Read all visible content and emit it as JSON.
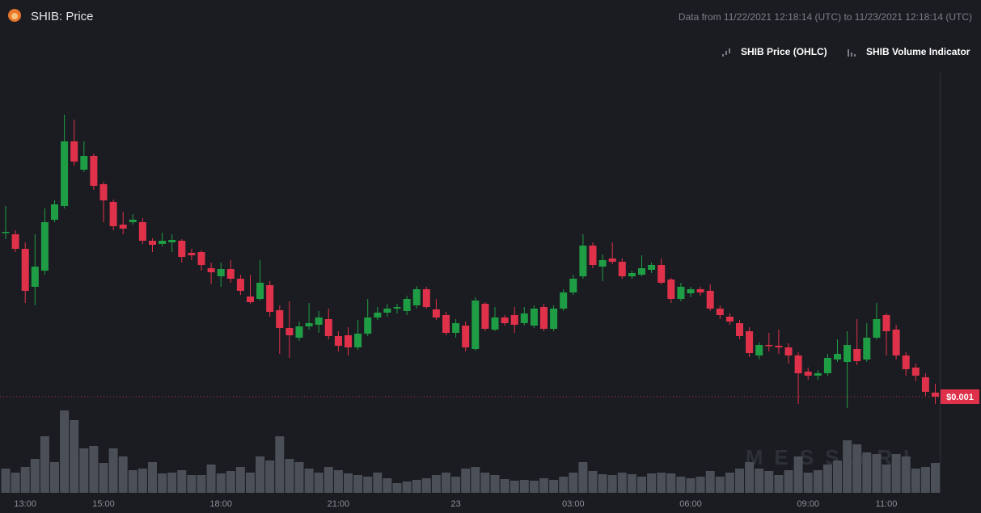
{
  "chart_data": {
    "type": "candlestick",
    "title": "SHIB: Price",
    "subtitle": "Data from 11/22/2021 12:18:14 (UTC) to 11/23/2021 12:18:14 (UTC)",
    "watermark": "MESSARI",
    "categories": [
      null,
      null,
      "13:00",
      null,
      null,
      null,
      null,
      null,
      null,
      null,
      "15:00",
      null,
      null,
      null,
      null,
      null,
      null,
      null,
      null,
      null,
      null,
      null,
      "18:00",
      null,
      null,
      null,
      null,
      null,
      null,
      null,
      null,
      null,
      null,
      null,
      "21:00",
      null,
      null,
      null,
      null,
      null,
      null,
      null,
      null,
      null,
      null,
      null,
      "23",
      null,
      null,
      null,
      null,
      null,
      null,
      null,
      null,
      null,
      null,
      null,
      "03:00",
      null,
      null,
      null,
      null,
      null,
      null,
      null,
      null,
      null,
      null,
      null,
      "06:00",
      null,
      null,
      null,
      null,
      null,
      null,
      null,
      null,
      null,
      null,
      null,
      "09:00",
      null,
      null,
      null,
      null,
      null,
      null,
      null,
      "11:00",
      null,
      null,
      null,
      null,
      null
    ],
    "ylim": [
      0.000981,
      0.001401
    ],
    "y2lim": [
      0,
      120
    ],
    "series": [
      {
        "name": "SHIB Price (OHLC)",
        "up_color": "#1f9d45",
        "down_color": "#e0314b",
        "last_value_label": "$0.001",
        "open": [
          0.001203,
          0.001201,
          0.001183,
          0.001136,
          0.001156,
          0.001219,
          0.001236,
          0.001316,
          0.001281,
          0.001298,
          0.001263,
          0.001241,
          0.001213,
          0.001216,
          0.001216,
          0.001193,
          0.001189,
          0.001191,
          0.001193,
          0.001178,
          0.001179,
          0.001159,
          0.001149,
          0.001158,
          0.001146,
          0.001124,
          0.001121,
          0.001138,
          0.001107,
          0.001085,
          0.001073,
          0.001087,
          0.001089,
          0.001096,
          0.001075,
          0.001076,
          0.001061,
          0.001078,
          0.001098,
          0.001104,
          0.001109,
          0.001106,
          0.001113,
          0.001133,
          0.001108,
          0.001101,
          0.001079,
          0.001088,
          0.001059,
          0.001115,
          0.001083,
          0.001098,
          0.001101,
          0.001091,
          0.001088,
          0.001111,
          0.001084,
          0.001109,
          0.001129,
          0.001149,
          0.001187,
          0.001161,
          0.001171,
          0.001167,
          0.001149,
          0.001151,
          0.001157,
          0.001163,
          0.001145,
          0.001121,
          0.001128,
          0.001133,
          0.001131,
          0.001109,
          0.001099,
          0.001091,
          0.001081,
          0.001051,
          0.001064,
          0.001063,
          0.001061,
          0.001051,
          0.001031,
          0.001026,
          0.001029,
          0.001046,
          0.001043,
          0.001059,
          0.001046,
          0.001073,
          0.001101,
          0.001083,
          0.001051,
          0.001036,
          0.001024,
          0.001005
        ],
        "high": [
          0.001236,
          0.001206,
          0.001191,
          0.001201,
          0.001233,
          0.001243,
          0.001349,
          0.001343,
          0.001316,
          0.001301,
          0.001266,
          0.001244,
          0.001229,
          0.001226,
          0.001221,
          0.001196,
          0.001203,
          0.001201,
          0.001195,
          0.001183,
          0.001181,
          0.001166,
          0.001166,
          0.001169,
          0.001151,
          0.001151,
          0.001169,
          0.001143,
          0.001113,
          0.001118,
          0.001093,
          0.001116,
          0.001106,
          0.001109,
          0.001081,
          0.001086,
          0.001095,
          0.001121,
          0.001111,
          0.001115,
          0.001115,
          0.001125,
          0.001137,
          0.001136,
          0.001121,
          0.001105,
          0.001096,
          0.001093,
          0.001123,
          0.001117,
          0.001111,
          0.001101,
          0.001111,
          0.001111,
          0.001113,
          0.001115,
          0.001113,
          0.001133,
          0.001151,
          0.001201,
          0.001191,
          0.001176,
          0.001191,
          0.001171,
          0.001156,
          0.001175,
          0.001166,
          0.001171,
          0.001147,
          0.001141,
          0.001136,
          0.001136,
          0.001139,
          0.001113,
          0.001103,
          0.001095,
          0.001086,
          0.001067,
          0.001079,
          0.001083,
          0.001066,
          0.001055,
          0.001036,
          0.001033,
          0.001053,
          0.001071,
          0.001081,
          0.001096,
          0.001091,
          0.001116,
          0.001103,
          0.001089,
          0.001055,
          0.001041,
          0.001029,
          0.001016
        ],
        "low": [
          0.001195,
          0.001179,
          0.001116,
          0.001113,
          0.001151,
          0.001216,
          0.001233,
          0.001286,
          0.001278,
          0.001256,
          0.001216,
          0.001206,
          0.001201,
          0.001213,
          0.001189,
          0.001179,
          0.001186,
          0.001179,
          0.001166,
          0.001169,
          0.001156,
          0.001139,
          0.001136,
          0.001141,
          0.001126,
          0.001115,
          0.001119,
          0.001099,
          0.001053,
          0.001048,
          0.001069,
          0.001083,
          0.001079,
          0.001071,
          0.001056,
          0.001051,
          0.001058,
          0.001075,
          0.001095,
          0.001099,
          0.001103,
          0.001101,
          0.001109,
          0.001109,
          0.001095,
          0.001076,
          0.001073,
          0.001056,
          0.001057,
          0.001081,
          0.001081,
          0.001088,
          0.001079,
          0.001088,
          0.001085,
          0.001081,
          0.001081,
          0.001106,
          0.001126,
          0.001146,
          0.001159,
          0.001143,
          0.001164,
          0.001146,
          0.001146,
          0.001149,
          0.001153,
          0.001139,
          0.001116,
          0.001118,
          0.001123,
          0.001125,
          0.001106,
          0.001096,
          0.001089,
          0.001071,
          0.001049,
          0.001046,
          0.001056,
          0.001053,
          0.001041,
          0.000991,
          0.001021,
          0.001021,
          0.001026,
          0.001043,
          0.000986,
          0.001039,
          0.001043,
          0.001071,
          0.001051,
          0.001046,
          0.001026,
          0.001019,
          0.001001,
          0.000991
        ],
        "close": [
          0.001204,
          0.001183,
          0.001131,
          0.001161,
          0.001216,
          0.001238,
          0.001316,
          0.001291,
          0.001298,
          0.001261,
          0.001243,
          0.001211,
          0.001208,
          0.001219,
          0.001193,
          0.001188,
          0.001193,
          0.001194,
          0.001173,
          0.001175,
          0.001163,
          0.001154,
          0.001158,
          0.001146,
          0.001131,
          0.001117,
          0.001141,
          0.001105,
          0.001085,
          0.001076,
          0.001087,
          0.001091,
          0.001098,
          0.001075,
          0.001063,
          0.001061,
          0.001078,
          0.001098,
          0.001104,
          0.001109,
          0.001111,
          0.001121,
          0.001133,
          0.001111,
          0.001098,
          0.001079,
          0.001091,
          0.001061,
          0.001119,
          0.001084,
          0.001098,
          0.001091,
          0.001089,
          0.001103,
          0.001109,
          0.001084,
          0.001109,
          0.001129,
          0.001146,
          0.001187,
          0.001163,
          0.001169,
          0.001167,
          0.001149,
          0.001153,
          0.001159,
          0.001163,
          0.001141,
          0.001121,
          0.001136,
          0.001133,
          0.001129,
          0.001109,
          0.001101,
          0.001093,
          0.001075,
          0.001054,
          0.001064,
          0.001063,
          0.001061,
          0.001051,
          0.001029,
          0.001026,
          0.001029,
          0.001048,
          0.001053,
          0.001064,
          0.001044,
          0.001073,
          0.001096,
          0.001081,
          0.001051,
          0.001034,
          0.001026,
          0.001006,
          0.001
        ]
      },
      {
        "name": "SHIB Volume Indicator",
        "axis": "y2",
        "color": "#4b4f57",
        "values": [
          30,
          25,
          32,
          42,
          70,
          38,
          102,
          90,
          55,
          58,
          37,
          55,
          45,
          28,
          30,
          38,
          24,
          25,
          28,
          22,
          22,
          35,
          24,
          27,
          32,
          25,
          45,
          40,
          70,
          42,
          38,
          30,
          25,
          32,
          28,
          24,
          22,
          20,
          25,
          18,
          12,
          14,
          16,
          18,
          22,
          25,
          20,
          30,
          32,
          25,
          22,
          17,
          15,
          16,
          15,
          18,
          16,
          20,
          25,
          38,
          27,
          23,
          22,
          25,
          23,
          20,
          24,
          25,
          24,
          20,
          18,
          20,
          27,
          20,
          25,
          30,
          38,
          30,
          27,
          22,
          28,
          45,
          25,
          28,
          35,
          40,
          65,
          60,
          50,
          48,
          35,
          48,
          45,
          30,
          32,
          37
        ]
      }
    ]
  }
}
